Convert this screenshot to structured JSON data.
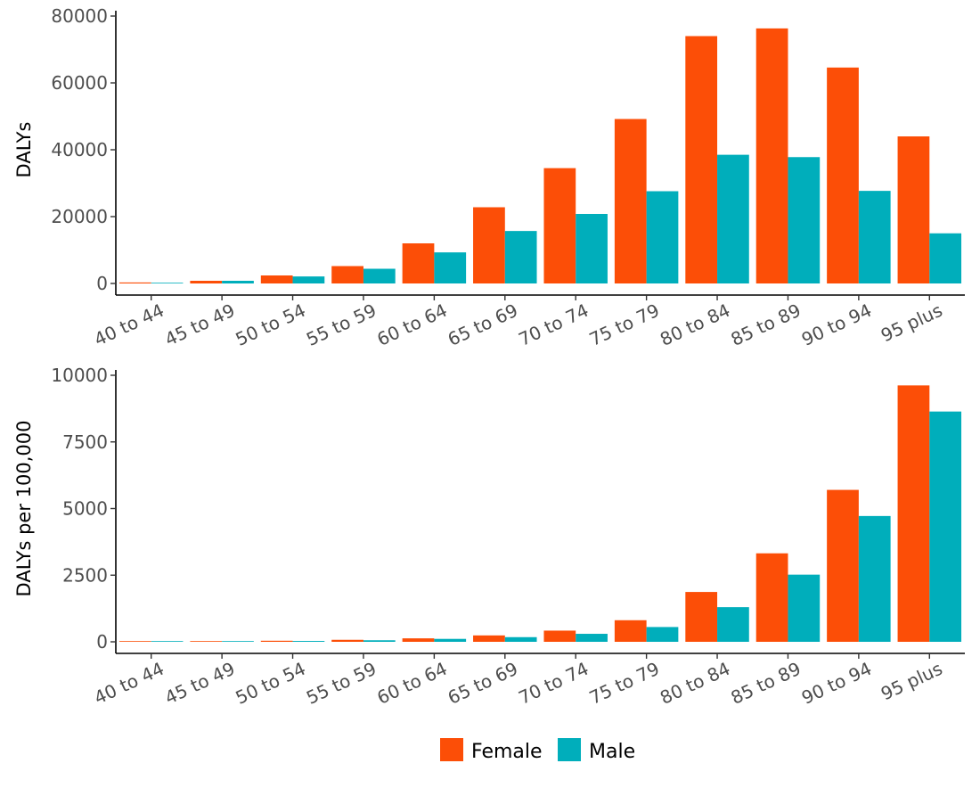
{
  "chart_data": [
    {
      "type": "bar",
      "title": "",
      "xlabel": "",
      "ylabel": "DALYs",
      "ylim": [
        0,
        80000
      ],
      "yticks": [
        0,
        20000,
        40000,
        60000,
        80000
      ],
      "ytick_labels": [
        "0",
        "20000",
        "40000",
        "60000",
        "80000"
      ],
      "categories": [
        "40 to 44",
        "45 to 49",
        "50 to 54",
        "55 to 59",
        "60 to 64",
        "65 to 69",
        "70 to 74",
        "75 to 79",
        "80 to 84",
        "85 to 89",
        "90 to 94",
        "95 plus"
      ],
      "series": [
        {
          "name": "Female",
          "color": "#fc4e07",
          "values": [
            300,
            800,
            2400,
            5200,
            12000,
            22800,
            34500,
            49200,
            74000,
            76300,
            64600,
            44000
          ]
        },
        {
          "name": "Male",
          "color": "#00aebb",
          "values": [
            200,
            800,
            2100,
            4400,
            9300,
            15700,
            20800,
            27600,
            38500,
            37800,
            27700,
            15000
          ]
        }
      ]
    },
    {
      "type": "bar",
      "title": "",
      "xlabel": "",
      "ylabel": "DALYs per 100,000",
      "ylim": [
        0,
        10000
      ],
      "yticks": [
        0,
        2500,
        5000,
        7500,
        10000
      ],
      "ytick_labels": [
        "0",
        "2500",
        "5000",
        "7500",
        "10000"
      ],
      "categories": [
        "40 to 44",
        "45 to 49",
        "50 to 54",
        "55 to 59",
        "60 to 64",
        "65 to 69",
        "70 to 74",
        "75 to 79",
        "80 to 84",
        "85 to 89",
        "90 to 94",
        "95 plus"
      ],
      "series": [
        {
          "name": "Female",
          "color": "#fc4e07",
          "values": [
            8,
            20,
            40,
            75,
            130,
            240,
            420,
            810,
            1870,
            3320,
            5700,
            9620
          ]
        },
        {
          "name": "Male",
          "color": "#00aebb",
          "values": [
            6,
            15,
            32,
            58,
            110,
            175,
            300,
            555,
            1300,
            2520,
            4720,
            8640
          ]
        }
      ]
    }
  ],
  "legend": {
    "position": "bottom",
    "items": [
      {
        "label": "Female",
        "color": "#fc4e07"
      },
      {
        "label": "Male",
        "color": "#00aebb"
      }
    ]
  }
}
